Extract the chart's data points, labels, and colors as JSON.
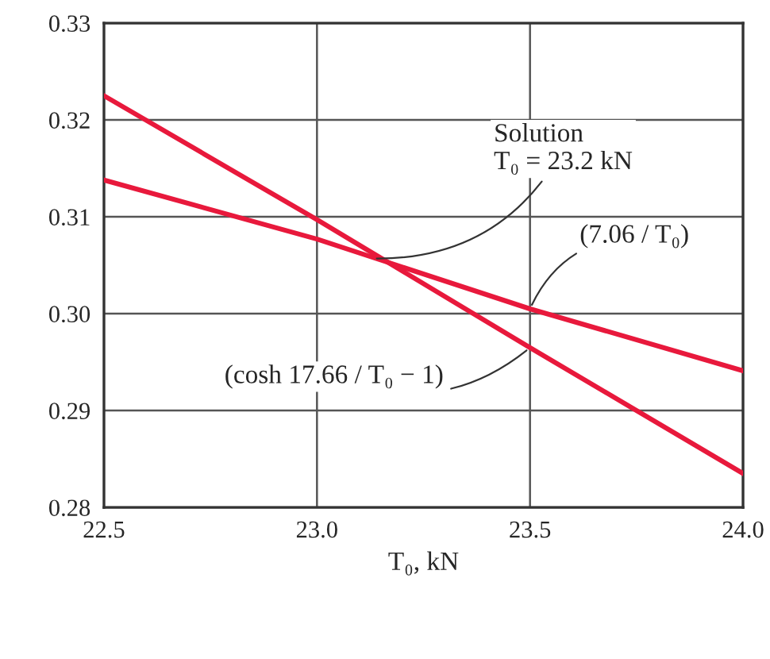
{
  "chart_data": {
    "type": "line",
    "xlabel": "T₀, kN",
    "x": [
      22.5,
      23.0,
      23.5,
      24.0
    ],
    "series": [
      {
        "name": "(7.06 / T₀)",
        "color": "#e8193c",
        "values": [
          0.3138,
          0.3077,
          0.3005,
          0.2941
        ]
      },
      {
        "name": "(cosh 17.66 / T₀ − 1)",
        "color": "#e8193c",
        "values": [
          0.3225,
          0.3097,
          0.2965,
          0.2835
        ]
      }
    ],
    "annotations": [
      {
        "text": "Solution\nT₀ = 23.2 kN",
        "x": 23.13,
        "y": 0.3057
      }
    ],
    "xlim": [
      22.5,
      24.0
    ],
    "ylim": [
      0.28,
      0.33
    ],
    "xticks": [
      {
        "value": 22.5,
        "label": "22.5"
      },
      {
        "value": 23.0,
        "label": "23.0"
      },
      {
        "value": 23.5,
        "label": "23.5"
      },
      {
        "value": 24.0,
        "label": "24.0"
      }
    ],
    "yticks": [
      {
        "value": 0.28,
        "label": "0.28"
      },
      {
        "value": 0.29,
        "label": "0.29"
      },
      {
        "value": 0.3,
        "label": "0.30"
      },
      {
        "value": 0.31,
        "label": "0.31"
      },
      {
        "value": 0.32,
        "label": "0.32"
      },
      {
        "value": 0.33,
        "label": "0.33"
      }
    ],
    "grid": true,
    "legend": false,
    "marker": "none",
    "line_style": "solid"
  }
}
